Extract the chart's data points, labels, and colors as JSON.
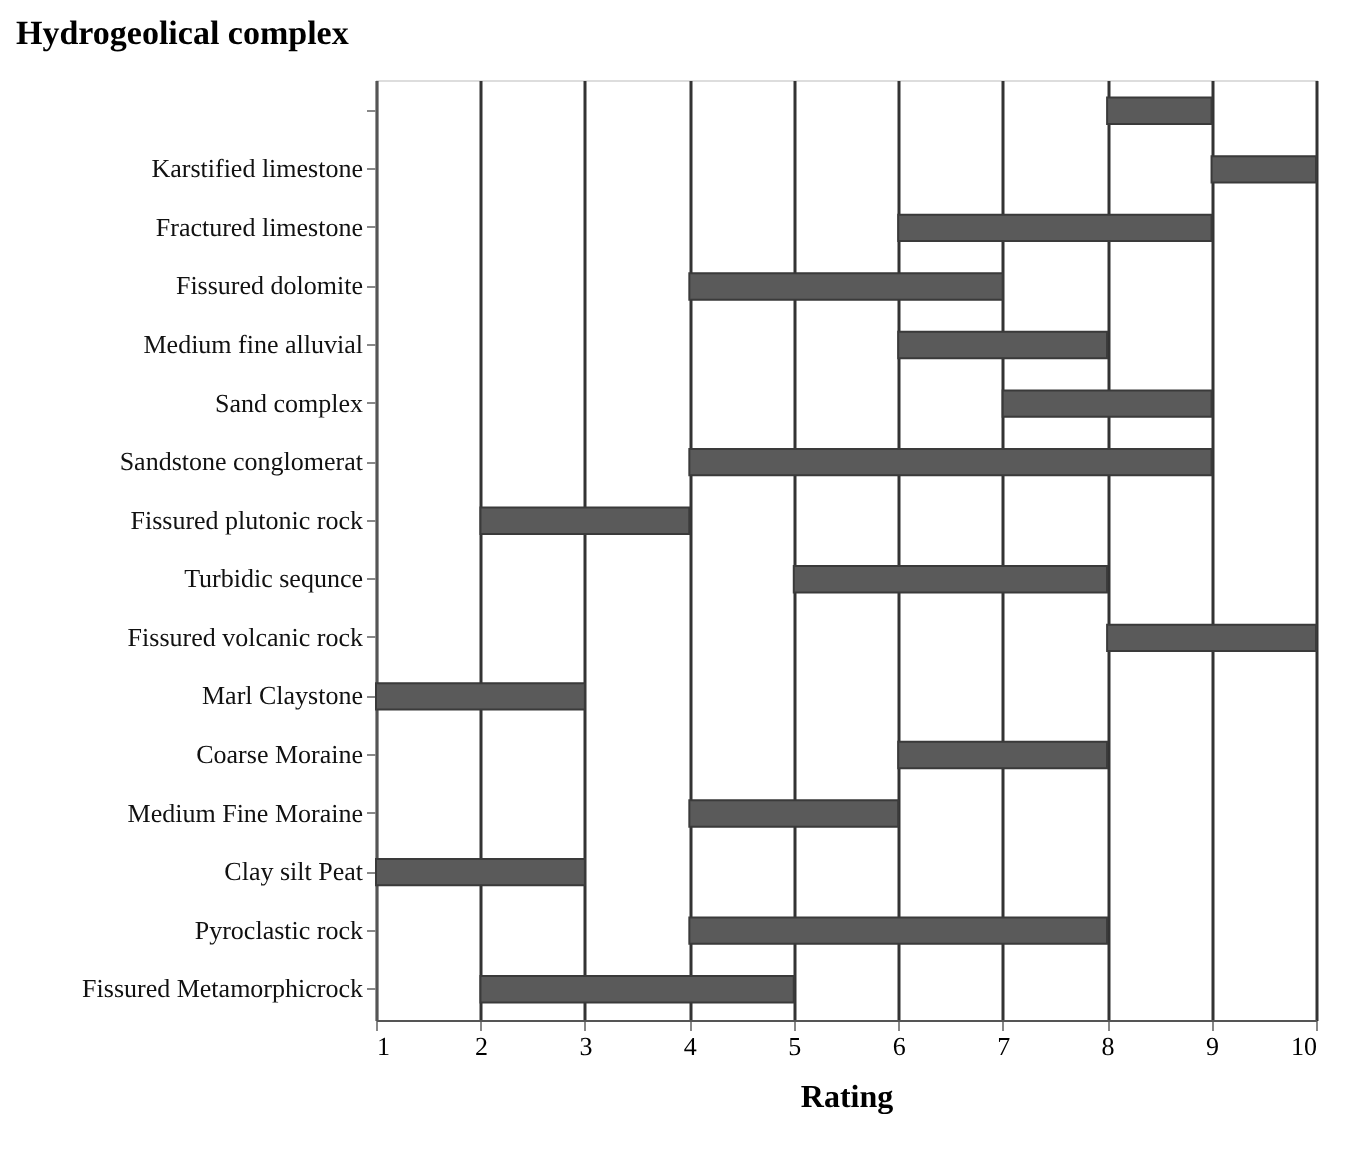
{
  "chart_data": {
    "type": "bar",
    "orientation": "horizontal",
    "title": "Hydrogeolical complex",
    "xlabel": "Rating",
    "categories": [
      null,
      "Karstified limestone",
      "Fractured limestone",
      "Fissured dolomite",
      "Medium fine alluvial",
      "Sand complex",
      "Sandstone conglomerat",
      "Fissured plutonic rock",
      "Turbidic sequnce",
      "Fissured volcanic rock",
      "Marl Claystone",
      "Coarse Moraine",
      "Medium Fine Moraine",
      "Clay silt Peat",
      "Pyroclastic rock",
      "Fissured Metamorphicrock"
    ],
    "base": [
      8,
      9,
      6,
      4,
      6,
      7,
      4,
      2,
      5,
      8,
      1,
      6,
      4,
      1,
      4,
      2
    ],
    "values": [
      1,
      1,
      3,
      3,
      2,
      2,
      5,
      2,
      3,
      2,
      2,
      2,
      2,
      2,
      4,
      3
    ],
    "color": "#5a5a5a",
    "xlim": [
      1,
      10
    ],
    "xticks": [
      1,
      2,
      3,
      4,
      5,
      6,
      7,
      8,
      9,
      10
    ],
    "grid": "x",
    "legend": false
  }
}
